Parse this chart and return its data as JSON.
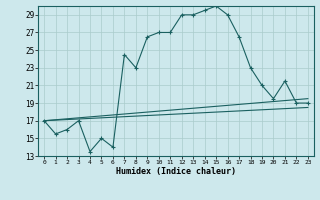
{
  "xlabel": "Humidex (Indice chaleur)",
  "background_color": "#cde8ec",
  "grid_color": "#aacccc",
  "line_color": "#1a6060",
  "xlim": [
    -0.5,
    23.5
  ],
  "ylim": [
    13,
    30
  ],
  "yticks": [
    13,
    15,
    17,
    19,
    21,
    23,
    25,
    27,
    29
  ],
  "xticks": [
    0,
    1,
    2,
    3,
    4,
    5,
    6,
    7,
    8,
    9,
    10,
    11,
    12,
    13,
    14,
    15,
    16,
    17,
    18,
    19,
    20,
    21,
    22,
    23
  ],
  "series1_x": [
    0,
    1,
    2,
    3,
    4,
    5,
    6,
    7,
    8,
    9,
    10,
    11,
    12,
    13,
    14,
    15,
    16,
    17,
    18,
    19,
    20,
    21,
    22,
    23
  ],
  "series1_y": [
    17.0,
    15.5,
    16.0,
    17.0,
    13.5,
    15.0,
    14.0,
    24.5,
    23.0,
    26.5,
    27.0,
    27.0,
    29.0,
    29.0,
    29.5,
    30.0,
    29.0,
    26.5,
    23.0,
    21.0,
    19.5,
    21.5,
    19.0,
    19.0
  ],
  "series2_x": [
    0,
    23
  ],
  "series2_y": [
    17.0,
    19.5
  ],
  "series3_x": [
    0,
    23
  ],
  "series3_y": [
    17.0,
    18.5
  ]
}
